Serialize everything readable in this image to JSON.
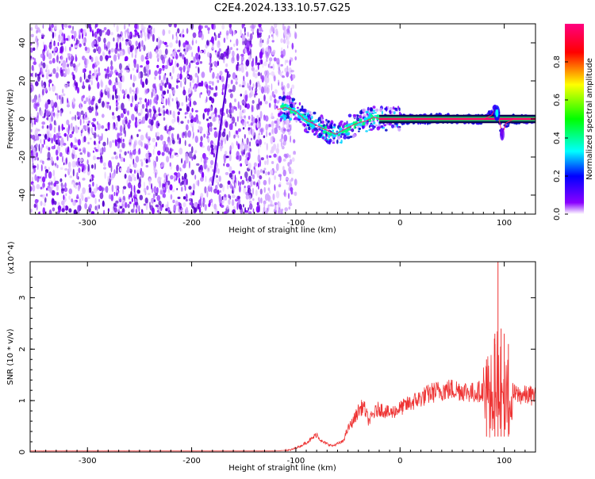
{
  "title": "C2E4.2024.133.10.57.G25",
  "chart_data": [
    {
      "type": "heatmap",
      "title": "C2E4.2024.133.10.57.G25",
      "xlabel": "Height of straight line (km)",
      "ylabel": "Frequency (Hz)",
      "xlim": [
        -355,
        130
      ],
      "ylim": [
        -50,
        50
      ],
      "xticks": [
        -300,
        -200,
        -100,
        0,
        100
      ],
      "yticks": [
        -40,
        -20,
        0,
        20,
        40
      ],
      "colorbar": {
        "label": "Normalized spectral amplitude",
        "range": [
          0,
          1
        ],
        "ticks": [
          0.0,
          0.2,
          0.4,
          0.6,
          0.8
        ],
        "colors": [
          "#ffffff",
          "#8a00ff",
          "#0000ff",
          "#00ffff",
          "#00ff00",
          "#ffff00",
          "#ff0000",
          "#ff0080"
        ]
      },
      "noise_region_x": [
        -355,
        -100
      ],
      "streak": [
        [
          -180,
          -35
        ],
        [
          -165,
          25
        ]
      ],
      "ridge": [
        [
          -118,
          5
        ],
        [
          -110,
          6
        ],
        [
          -100,
          4
        ],
        [
          -92,
          0
        ],
        [
          -85,
          -2
        ],
        [
          -78,
          -4
        ],
        [
          -70,
          -6
        ],
        [
          -62,
          -8
        ],
        [
          -55,
          -6
        ],
        [
          -48,
          -4
        ],
        [
          -40,
          -2
        ],
        [
          -32,
          -1
        ],
        [
          -25,
          1
        ],
        [
          -18,
          0
        ],
        [
          -10,
          0
        ],
        [
          0,
          0
        ],
        [
          20,
          0
        ],
        [
          40,
          0
        ],
        [
          60,
          0
        ],
        [
          80,
          0
        ],
        [
          88,
          2
        ],
        [
          92,
          6
        ],
        [
          95,
          0
        ],
        [
          98,
          -8
        ],
        [
          102,
          -2
        ],
        [
          110,
          0
        ],
        [
          130,
          0
        ]
      ]
    },
    {
      "type": "line",
      "xlabel": "Height of straight line (km)",
      "ylabel": "SNR (10 * v/v)",
      "y_multiplier": "(x10^4)",
      "xlim": [
        -355,
        130
      ],
      "ylim": [
        0,
        3.7
      ],
      "xticks": [
        -300,
        -200,
        -100,
        0,
        100
      ],
      "yticks": [
        0,
        1,
        2,
        3
      ],
      "color": "#ee3333",
      "envelope": [
        [
          -355,
          0.02
        ],
        [
          -200,
          0.02
        ],
        [
          -120,
          0.02
        ],
        [
          -105,
          0.04
        ],
        [
          -95,
          0.12
        ],
        [
          -85,
          0.25
        ],
        [
          -80,
          0.35
        ],
        [
          -75,
          0.2
        ],
        [
          -65,
          0.12
        ],
        [
          -55,
          0.2
        ],
        [
          -50,
          0.45
        ],
        [
          -45,
          0.6
        ],
        [
          -40,
          0.8
        ],
        [
          -35,
          0.9
        ],
        [
          -30,
          0.6
        ],
        [
          -25,
          0.75
        ],
        [
          -20,
          0.85
        ],
        [
          -10,
          0.75
        ],
        [
          0,
          0.85
        ],
        [
          10,
          0.95
        ],
        [
          20,
          1.05
        ],
        [
          30,
          1.15
        ],
        [
          40,
          1.2
        ],
        [
          50,
          1.22
        ],
        [
          60,
          1.2
        ],
        [
          70,
          1.15
        ],
        [
          80,
          1.2
        ],
        [
          85,
          1.3
        ],
        [
          90,
          1.5
        ],
        [
          95,
          1.6
        ],
        [
          100,
          1.3
        ],
        [
          105,
          1.2
        ],
        [
          110,
          1.12
        ],
        [
          120,
          1.1
        ],
        [
          130,
          1.1
        ]
      ],
      "peaks": [
        [
          83,
          1.8
        ],
        [
          91,
          2.3
        ],
        [
          94,
          3.7
        ],
        [
          97,
          2.4
        ],
        [
          100,
          2.3
        ],
        [
          104,
          2.1
        ]
      ]
    }
  ]
}
